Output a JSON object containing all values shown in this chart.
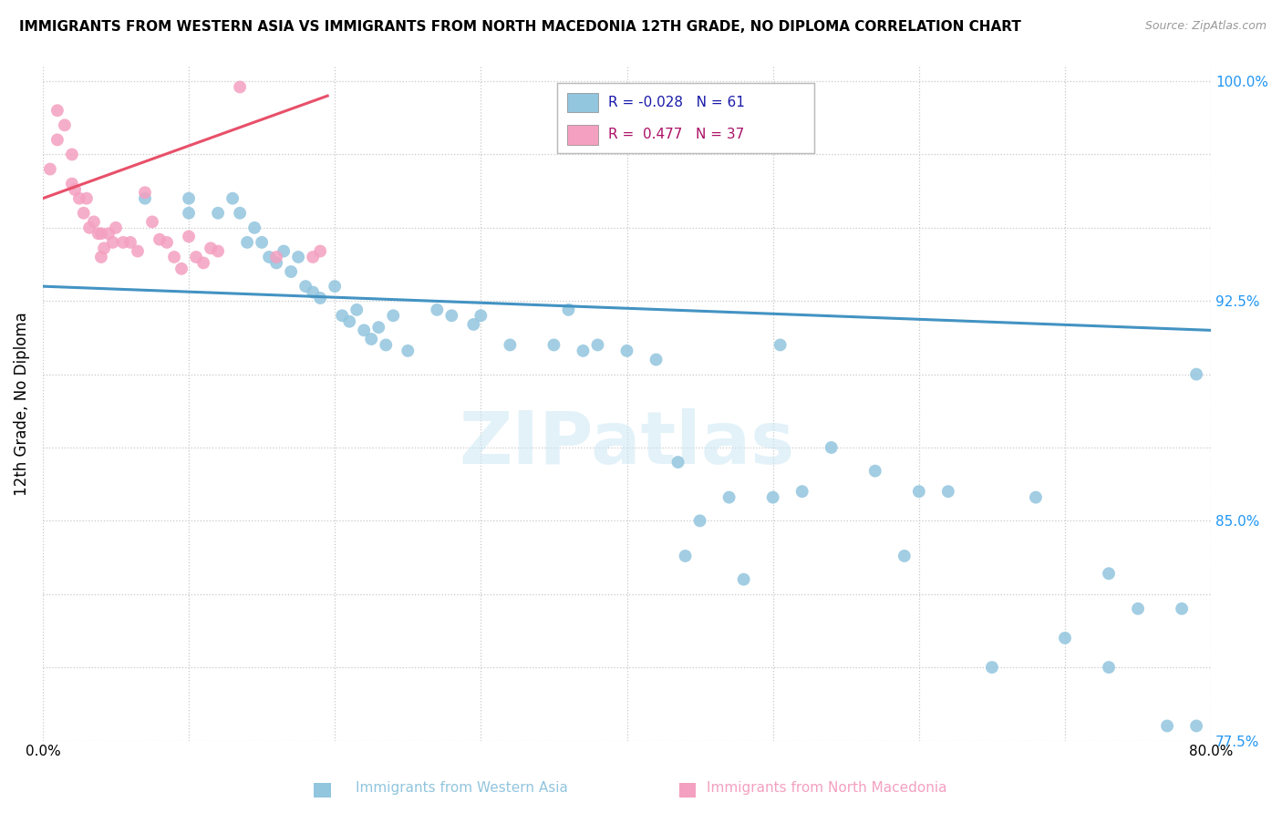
{
  "title": "IMMIGRANTS FROM WESTERN ASIA VS IMMIGRANTS FROM NORTH MACEDONIA 12TH GRADE, NO DIPLOMA CORRELATION CHART",
  "source": "Source: ZipAtlas.com",
  "legend_label_blue": "Immigrants from Western Asia",
  "legend_label_pink": "Immigrants from North Macedonia",
  "ylabel": "12th Grade, No Diploma",
  "xmin": 0.0,
  "xmax": 0.8,
  "ymin": 0.775,
  "ymax": 1.005,
  "ytick_vals": [
    0.775,
    0.8,
    0.825,
    0.85,
    0.875,
    0.9,
    0.925,
    0.95,
    0.975,
    1.0
  ],
  "ytick_labels": [
    "77.5%",
    "",
    "",
    "85.0%",
    "",
    "",
    "92.5%",
    "",
    "",
    "100.0%"
  ],
  "xtick_vals": [
    0.0,
    0.1,
    0.2,
    0.3,
    0.4,
    0.5,
    0.6,
    0.7,
    0.8
  ],
  "xtick_labels": [
    "0.0%",
    "",
    "",
    "",
    "",
    "",
    "",
    "",
    "80.0%"
  ],
  "R_blue": -0.028,
  "N_blue": 61,
  "R_pink": 0.477,
  "N_pink": 37,
  "color_blue": "#92c5de",
  "color_pink": "#f4a0c0",
  "color_blue_line": "#4393c3",
  "color_pink_line": "#e8506a",
  "watermark": "ZIPatlas",
  "blue_x": [
    0.07,
    0.1,
    0.1,
    0.12,
    0.13,
    0.135,
    0.14,
    0.145,
    0.15,
    0.155,
    0.16,
    0.165,
    0.17,
    0.175,
    0.18,
    0.185,
    0.19,
    0.2,
    0.205,
    0.21,
    0.215,
    0.22,
    0.225,
    0.23,
    0.235,
    0.24,
    0.25,
    0.27,
    0.28,
    0.295,
    0.3,
    0.32,
    0.35,
    0.36,
    0.37,
    0.38,
    0.4,
    0.42,
    0.435,
    0.44,
    0.45,
    0.47,
    0.48,
    0.5,
    0.505,
    0.52,
    0.54,
    0.57,
    0.59,
    0.6,
    0.62,
    0.65,
    0.68,
    0.7,
    0.73,
    0.73,
    0.75,
    0.77,
    0.78,
    0.79,
    0.79
  ],
  "blue_y": [
    0.96,
    0.955,
    0.96,
    0.955,
    0.96,
    0.955,
    0.945,
    0.95,
    0.945,
    0.94,
    0.938,
    0.942,
    0.935,
    0.94,
    0.93,
    0.928,
    0.926,
    0.93,
    0.92,
    0.918,
    0.922,
    0.915,
    0.912,
    0.916,
    0.91,
    0.92,
    0.908,
    0.922,
    0.92,
    0.917,
    0.92,
    0.91,
    0.91,
    0.922,
    0.908,
    0.91,
    0.908,
    0.905,
    0.87,
    0.838,
    0.85,
    0.858,
    0.83,
    0.858,
    0.91,
    0.86,
    0.875,
    0.867,
    0.838,
    0.86,
    0.86,
    0.8,
    0.858,
    0.81,
    0.832,
    0.8,
    0.82,
    0.78,
    0.82,
    0.78,
    0.9
  ],
  "pink_x": [
    0.005,
    0.01,
    0.01,
    0.015,
    0.02,
    0.02,
    0.022,
    0.025,
    0.028,
    0.03,
    0.032,
    0.035,
    0.038,
    0.04,
    0.04,
    0.042,
    0.045,
    0.048,
    0.05,
    0.055,
    0.06,
    0.065,
    0.07,
    0.075,
    0.08,
    0.085,
    0.09,
    0.095,
    0.1,
    0.105,
    0.11,
    0.115,
    0.12,
    0.135,
    0.16,
    0.185,
    0.19
  ],
  "pink_y": [
    0.97,
    0.99,
    0.98,
    0.985,
    0.975,
    0.965,
    0.963,
    0.96,
    0.955,
    0.96,
    0.95,
    0.952,
    0.948,
    0.948,
    0.94,
    0.943,
    0.948,
    0.945,
    0.95,
    0.945,
    0.945,
    0.942,
    0.962,
    0.952,
    0.946,
    0.945,
    0.94,
    0.936,
    0.947,
    0.94,
    0.938,
    0.943,
    0.942,
    0.998,
    0.94,
    0.94,
    0.942
  ],
  "blue_trend_x": [
    0.0,
    0.8
  ],
  "blue_trend_y": [
    0.93,
    0.915
  ],
  "pink_trend_x": [
    0.0,
    0.195
  ],
  "pink_trend_y": [
    0.96,
    0.995
  ]
}
